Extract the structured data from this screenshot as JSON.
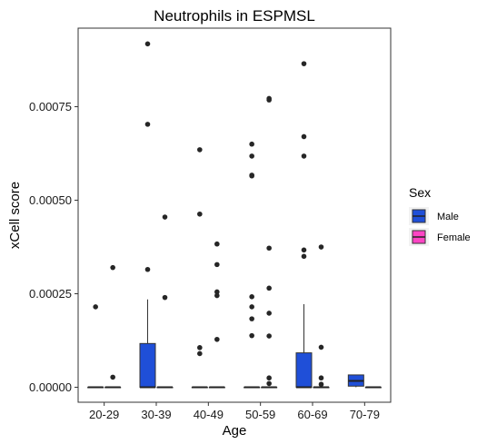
{
  "chart_data": {
    "type": "boxplot",
    "title": "Neutrophils in ESPMSL",
    "xlabel": "Age",
    "ylabel": "xCell score",
    "categories": [
      "20-29",
      "30-39",
      "40-49",
      "50-59",
      "60-69",
      "70-79"
    ],
    "y_ticks": [
      0,
      0.00025,
      0.0005,
      0.00075
    ],
    "y_tick_labels": [
      "0.00000",
      "0.00025",
      "0.00050",
      "0.00075"
    ],
    "ylim": [
      -4e-05,
      0.00096
    ],
    "grid": false,
    "legend": {
      "title": "Sex",
      "position": "right",
      "entries": [
        {
          "label": "Male",
          "color": "#1f4fd8"
        },
        {
          "label": "Female",
          "color": "#ff44c4"
        }
      ]
    },
    "series": [
      {
        "name": "Male",
        "color": "#1f4fd8",
        "boxes": [
          {
            "category": "20-29",
            "min": 0,
            "q1": 0,
            "median": 0,
            "q3": 0,
            "max": 0,
            "outliers": [
              0.000215
            ]
          },
          {
            "category": "30-39",
            "min": 0,
            "q1": 0,
            "median": 0,
            "q3": 0.000117,
            "max": 0.000235,
            "outliers": [
              0.000315,
              0.000703,
              0.000918
            ]
          },
          {
            "category": "40-49",
            "min": 0,
            "q1": 0,
            "median": 0,
            "q3": 0,
            "max": 0,
            "outliers": [
              9e-05,
              0.000106,
              0.000463,
              0.000635
            ]
          },
          {
            "category": "50-59",
            "min": 0,
            "q1": 0,
            "median": 0,
            "q3": 0,
            "max": 0,
            "outliers": [
              0.000138,
              0.000183,
              0.000215,
              0.000242,
              0.000565,
              0.000567,
              0.000618,
              0.00065
            ]
          },
          {
            "category": "60-69",
            "min": 0,
            "q1": 0,
            "median": 0,
            "q3": 9.2e-05,
            "max": 0.000222,
            "outliers": [
              0.00035,
              0.000367,
              0.000618,
              0.00067,
              0.000865
            ]
          },
          {
            "category": "70-79",
            "min": 0,
            "q1": 3e-06,
            "median": 1.7e-05,
            "q3": 3.3e-05,
            "max": 3.3e-05,
            "outliers": []
          }
        ]
      },
      {
        "name": "Female",
        "color": "#ff44c4",
        "boxes": [
          {
            "category": "20-29",
            "min": 0,
            "q1": 0,
            "median": 0,
            "q3": 0,
            "max": 0,
            "outliers": [
              2.7e-05,
              0.00032
            ]
          },
          {
            "category": "30-39",
            "min": 0,
            "q1": 0,
            "median": 0,
            "q3": 0,
            "max": 0,
            "outliers": [
              0.00024,
              0.000455
            ]
          },
          {
            "category": "40-49",
            "min": 0,
            "q1": 0,
            "median": 0,
            "q3": 0,
            "max": 0,
            "outliers": [
              0.000128,
              0.000245,
              0.000255,
              0.000328,
              0.000383
            ]
          },
          {
            "category": "50-59",
            "min": 0,
            "q1": 0,
            "median": 0,
            "q3": 0,
            "max": 0,
            "outliers": [
              1e-05,
              2.5e-05,
              0.000137,
              0.000198,
              0.000265,
              0.000372,
              0.000768,
              0.000772
            ]
          },
          {
            "category": "60-69",
            "min": 0,
            "q1": 0,
            "median": 0,
            "q3": 0,
            "max": 0,
            "outliers": [
              8e-06,
              2.5e-05,
              0.000107,
              0.000375
            ]
          },
          {
            "category": "70-79",
            "min": 0,
            "q1": 0,
            "median": 0,
            "q3": 0,
            "max": 0,
            "outliers": []
          }
        ]
      }
    ]
  }
}
